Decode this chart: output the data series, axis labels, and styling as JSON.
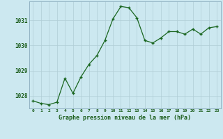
{
  "x": [
    0,
    1,
    2,
    3,
    4,
    5,
    6,
    7,
    8,
    9,
    10,
    11,
    12,
    13,
    14,
    15,
    16,
    17,
    18,
    19,
    20,
    21,
    22,
    23
  ],
  "y": [
    1027.8,
    1027.7,
    1027.65,
    1027.75,
    1028.7,
    1028.1,
    1028.75,
    1029.25,
    1029.6,
    1030.2,
    1031.05,
    1031.55,
    1031.5,
    1031.1,
    1030.2,
    1030.1,
    1030.3,
    1030.55,
    1030.55,
    1030.45,
    1030.65,
    1030.45,
    1030.7,
    1030.75
  ],
  "line_color": "#1a6620",
  "marker_color": "#1a6620",
  "bg_color": "#cce8f0",
  "grid_color": "#b0cdd6",
  "border_color": "#88aabc",
  "xlabel": "Graphe pression niveau de la mer (hPa)",
  "xlabel_color": "#1a5c1a",
  "tick_color": "#1a5c1a",
  "ylim": [
    1027.5,
    1031.75
  ],
  "yticks": [
    1028,
    1029,
    1030,
    1031
  ],
  "xticks": [
    0,
    1,
    2,
    3,
    4,
    5,
    6,
    7,
    8,
    9,
    10,
    11,
    12,
    13,
    14,
    15,
    16,
    17,
    18,
    19,
    20,
    21,
    22,
    23
  ],
  "figsize": [
    3.2,
    2.0
  ],
  "dpi": 100
}
